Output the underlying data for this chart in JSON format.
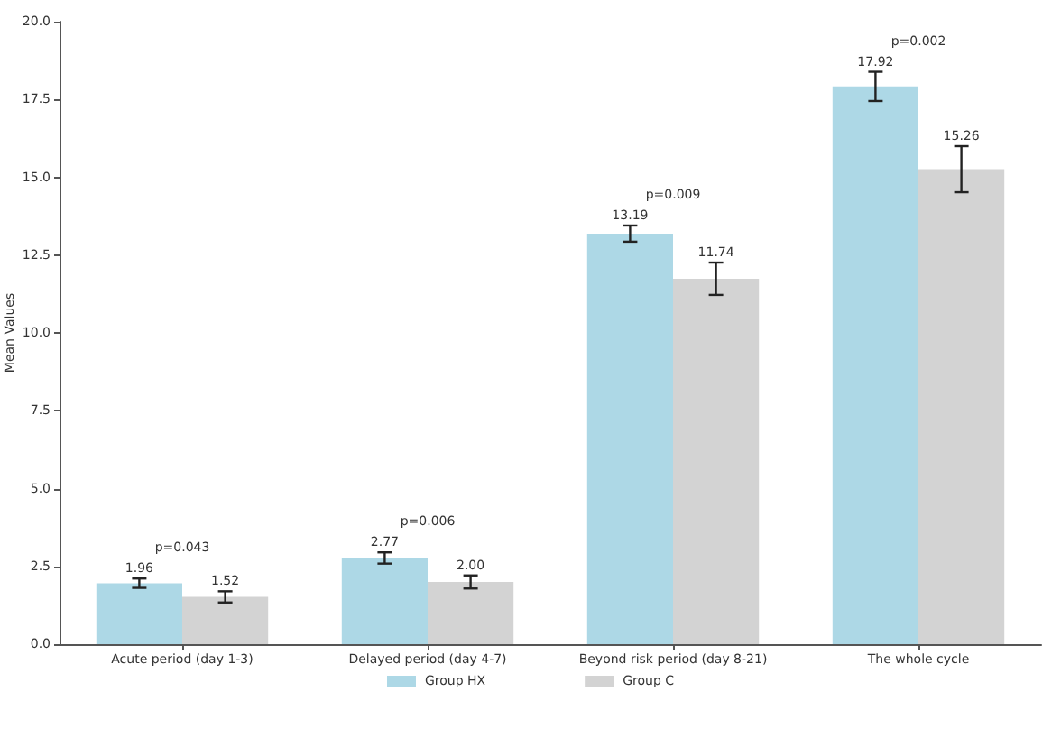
{
  "chart_data": {
    "type": "bar",
    "ylabel": "Mean Values",
    "categories": [
      "Acute period (day 1-3)",
      "Delayed period (day 4-7)",
      "Beyond risk period (day 8-21)",
      "The whole cycle"
    ],
    "series": [
      {
        "name": "Group HX",
        "color": "#add8e6",
        "values": [
          1.96,
          2.77,
          13.19,
          17.92
        ],
        "errors": [
          0.15,
          0.18,
          0.26,
          0.47
        ],
        "value_labels": [
          "1.96",
          "2.77",
          "13.19",
          "17.92"
        ]
      },
      {
        "name": "Group C",
        "color": "#d3d3d3",
        "values": [
          1.52,
          2.0,
          11.74,
          15.26
        ],
        "errors": [
          0.18,
          0.21,
          0.52,
          0.74
        ],
        "value_labels": [
          "1.52",
          "2.00",
          "11.74",
          "15.26"
        ]
      }
    ],
    "ylim": [
      0,
      20
    ],
    "yticks": [
      {
        "value": 0,
        "label": "0.0"
      },
      2.5,
      {
        "value": 5,
        "label": "5.0"
      },
      7.5,
      {
        "value": 10,
        "label": "10.0"
      },
      12.5,
      {
        "value": 15,
        "label": "15.0"
      },
      17.5,
      {
        "value": 20,
        "label": "20.0"
      }
    ],
    "annotations": [
      "p=0.043",
      "p=0.006",
      "p=0.009",
      "p=0.002"
    ],
    "grid": false,
    "legend": "bottom"
  }
}
